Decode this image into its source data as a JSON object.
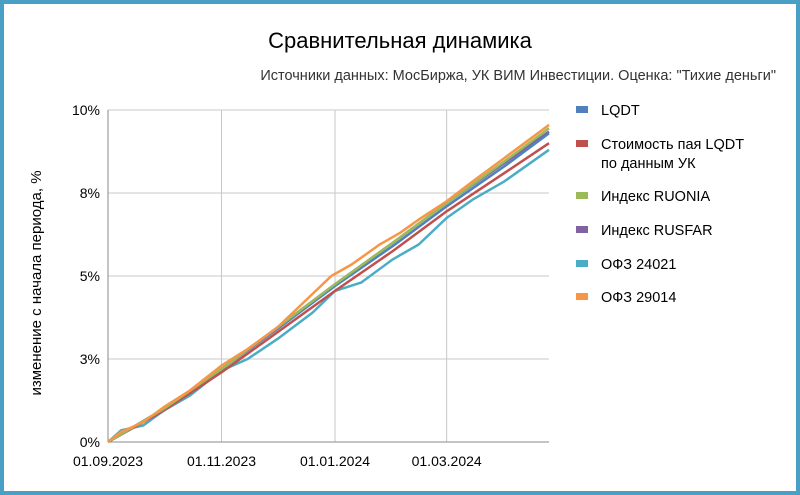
{
  "chart_data": {
    "type": "line",
    "title": "Сравнительная динамика",
    "subtitle": "Источники данных: МосБиржа, УК ВИМ Инвестиции. Оценка: \"Тихие деньги\"",
    "ylabel": "изменение с начала периода, %",
    "xlabel": "",
    "x_ticks": [
      "01.09.2023",
      "01.11.2023",
      "01.01.2024",
      "01.03.2024"
    ],
    "y_ticks": [
      "0%",
      "3%",
      "5%",
      "8%",
      "10%"
    ],
    "y_tick_values": [
      0,
      2.5,
      5,
      7.5,
      10
    ],
    "ylim": [
      0,
      10
    ],
    "xlim": [
      "2023-09-01",
      "2024-04-25"
    ],
    "grid": true,
    "legend_position": "right",
    "series": [
      {
        "name": "LQDT",
        "color": "#4f81bd",
        "x": [
          "2023-09-01",
          "2023-10-01",
          "2023-11-01",
          "2023-12-01",
          "2024-01-01",
          "2024-02-01",
          "2024-03-01",
          "2024-04-01",
          "2024-04-25"
        ],
        "values": [
          0,
          1.0,
          2.2,
          3.4,
          4.7,
          5.9,
          7.1,
          8.3,
          9.3
        ]
      },
      {
        "name": "Стоимость пая LQDT по данным УК",
        "color": "#c0504d",
        "x": [
          "2023-09-01",
          "2023-10-01",
          "2023-11-01",
          "2023-12-01",
          "2024-01-01",
          "2024-02-01",
          "2024-03-01",
          "2024-04-01",
          "2024-04-25"
        ],
        "values": [
          0,
          0.95,
          2.1,
          3.3,
          4.55,
          5.75,
          6.95,
          8.1,
          9.0
        ]
      },
      {
        "name": "Индекс RUONIA",
        "color": "#9bbb59",
        "x": [
          "2023-09-01",
          "2023-10-01",
          "2023-11-01",
          "2023-12-01",
          "2024-01-01",
          "2024-02-01",
          "2024-03-01",
          "2024-04-01",
          "2024-04-25"
        ],
        "values": [
          0,
          1.0,
          2.2,
          3.45,
          4.75,
          6.0,
          7.2,
          8.45,
          9.45
        ]
      },
      {
        "name": "Индекс RUSFAR",
        "color": "#8064a2",
        "x": [
          "2023-09-01",
          "2023-10-01",
          "2023-11-01",
          "2023-12-01",
          "2024-01-01",
          "2024-02-01",
          "2024-03-01",
          "2024-04-01",
          "2024-04-25"
        ],
        "values": [
          0,
          1.0,
          2.2,
          3.45,
          4.75,
          6.0,
          7.2,
          8.4,
          9.35
        ]
      },
      {
        "name": "ОФЗ 24021",
        "color": "#4bacc6",
        "x": [
          "2023-09-01",
          "2023-09-08",
          "2023-09-20",
          "2023-10-01",
          "2023-10-15",
          "2023-11-01",
          "2023-11-15",
          "2023-12-01",
          "2023-12-20",
          "2024-01-01",
          "2024-01-15",
          "2024-02-01",
          "2024-02-15",
          "2024-03-01",
          "2024-03-15",
          "2024-04-01",
          "2024-04-25"
        ],
        "values": [
          0,
          0.35,
          0.5,
          0.95,
          1.4,
          2.15,
          2.5,
          3.1,
          3.9,
          4.55,
          4.8,
          5.5,
          5.95,
          6.75,
          7.3,
          7.85,
          8.8
        ]
      },
      {
        "name": "ОФЗ 29014",
        "color": "#f79646",
        "x": [
          "2023-09-01",
          "2023-09-08",
          "2023-09-20",
          "2023-10-01",
          "2023-10-15",
          "2023-11-01",
          "2023-11-15",
          "2023-12-01",
          "2023-12-15",
          "2023-12-30",
          "2024-01-10",
          "2024-01-25",
          "2024-02-05",
          "2024-02-15",
          "2024-03-01",
          "2024-03-15",
          "2024-04-01",
          "2024-04-25"
        ],
        "values": [
          0,
          0.3,
          0.6,
          1.05,
          1.55,
          2.3,
          2.8,
          3.45,
          4.2,
          5.0,
          5.35,
          5.95,
          6.3,
          6.7,
          7.25,
          7.85,
          8.55,
          9.55
        ]
      }
    ]
  }
}
